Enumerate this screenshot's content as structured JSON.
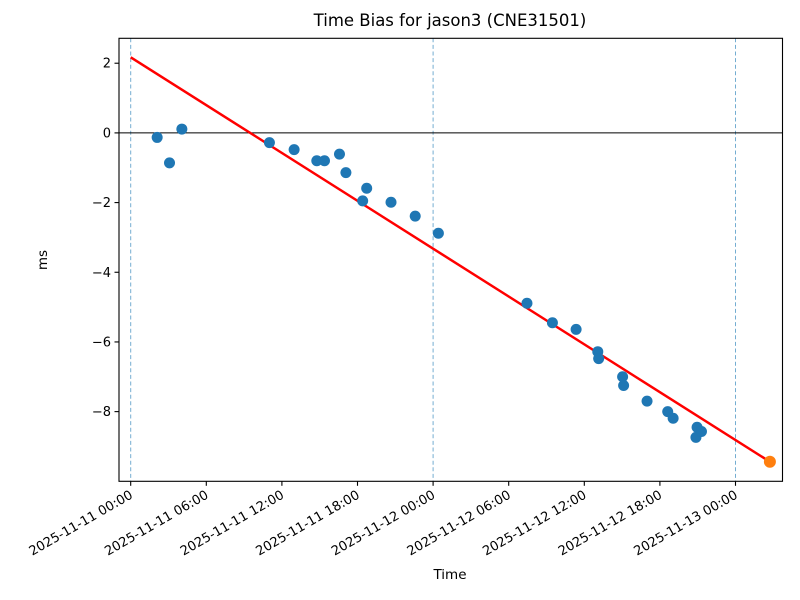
{
  "chart_data": {
    "type": "scatter",
    "title": "Time Bias for jason3 (CNE31501)",
    "xlabel": "Time",
    "ylabel": "ms",
    "time_origin": "2025-11-11 00:00",
    "x_unit": "hours since 2025-11-11 00:00",
    "xlim_hours": [
      -0.93,
      51.8
    ],
    "ylim": [
      -10.0,
      2.72
    ],
    "x_ticks": {
      "hours": [
        0,
        6,
        12,
        18,
        24,
        30,
        36,
        42,
        48
      ],
      "labels": [
        "2025-11-11 00:00",
        "2025-11-11 06:00",
        "2025-11-11 12:00",
        "2025-11-11 18:00",
        "2025-11-12 00:00",
        "2025-11-12 06:00",
        "2025-11-12 12:00",
        "2025-11-12 18:00",
        "2025-11-13 00:00"
      ]
    },
    "y_ticks": {
      "values": [
        2,
        0,
        -2,
        -4,
        -6,
        -8
      ],
      "labels": [
        "2",
        "0",
        "−2",
        "−4",
        "−6",
        "−8"
      ]
    },
    "day_gridlines_hours": [
      0,
      24,
      48
    ],
    "zero_line_value": 0,
    "series": [
      {
        "name": "time-bias-measurements",
        "type": "scatter",
        "color": "#1f77b4",
        "marker_radius": 5.5,
        "points": [
          [
            2.1,
            -0.13
          ],
          [
            3.08,
            -0.86
          ],
          [
            4.06,
            0.11
          ],
          [
            11.01,
            -0.28
          ],
          [
            12.97,
            -0.48
          ],
          [
            14.77,
            -0.8
          ],
          [
            15.38,
            -0.8
          ],
          [
            16.57,
            -0.61
          ],
          [
            17.08,
            -1.14
          ],
          [
            18.41,
            -1.95
          ],
          [
            18.73,
            -1.59
          ],
          [
            20.66,
            -1.99
          ],
          [
            22.58,
            -2.39
          ],
          [
            24.42,
            -2.88
          ],
          [
            31.45,
            -4.89
          ],
          [
            33.47,
            -5.45
          ],
          [
            35.35,
            -5.64
          ],
          [
            37.07,
            -6.28
          ],
          [
            37.14,
            -6.48
          ],
          [
            39.04,
            -7.0
          ],
          [
            39.12,
            -7.25
          ],
          [
            40.98,
            -7.7
          ],
          [
            42.62,
            -8.0
          ],
          [
            43.05,
            -8.19
          ],
          [
            44.86,
            -8.74
          ],
          [
            44.95,
            -8.45
          ],
          [
            45.3,
            -8.57
          ]
        ]
      },
      {
        "name": "extrapolated-point",
        "type": "scatter",
        "color": "#ff7f0e",
        "marker_radius": 6,
        "points": [
          [
            50.73,
            -9.44
          ]
        ]
      },
      {
        "name": "trend-line",
        "type": "line",
        "color": "#ff0000",
        "line_width": 2.5,
        "points": [
          [
            0.0,
            2.17
          ],
          [
            50.73,
            -9.44
          ]
        ]
      }
    ],
    "colors": {
      "day_gridline": "#74add1",
      "zero_line": "#000000",
      "axes": "#000000",
      "background": "#ffffff",
      "measurement": "#1f77b4",
      "extrapolated": "#ff7f0e",
      "trend": "#ff0000"
    },
    "legend": "none",
    "grid": "vertical day boundaries only, dashed"
  }
}
